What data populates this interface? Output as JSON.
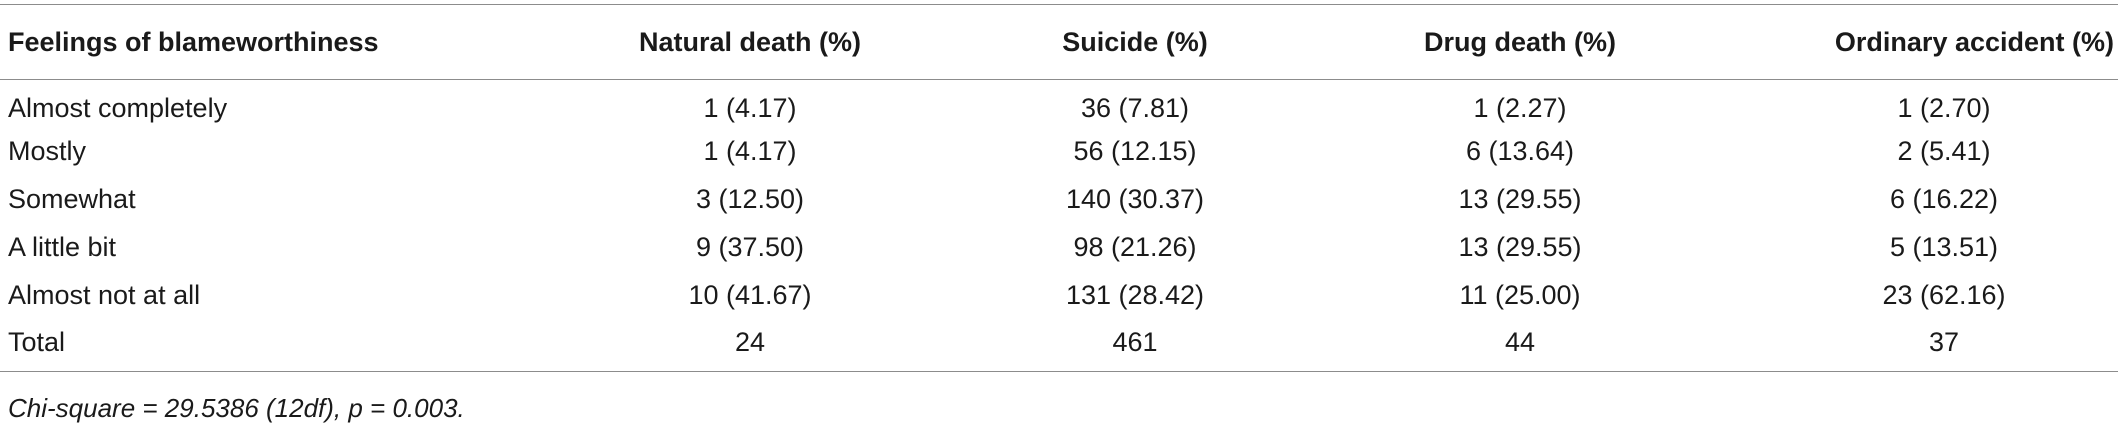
{
  "table": {
    "headers": [
      "Feelings of blameworthiness",
      "Natural death (%)",
      "Suicide (%)",
      "Drug death (%)",
      "Ordinary accident (%)"
    ],
    "rows": [
      [
        "Almost completely",
        "1 (4.17)",
        "36 (7.81)",
        "1 (2.27)",
        "1 (2.70)"
      ],
      [
        "Mostly",
        "1 (4.17)",
        "56 (12.15)",
        "6 (13.64)",
        "2 (5.41)"
      ],
      [
        "Somewhat",
        "3 (12.50)",
        "140 (30.37)",
        "13 (29.55)",
        "6 (16.22)"
      ],
      [
        "A little bit",
        "9 (37.50)",
        "98 (21.26)",
        "13 (29.55)",
        "5 (13.51)"
      ],
      [
        "Almost not at all",
        "10 (41.67)",
        "131 (28.42)",
        "11 (25.00)",
        "23 (62.16)"
      ],
      [
        "Total",
        "24",
        "461",
        "44",
        "37"
      ]
    ]
  },
  "footnote": "Chi-square = 29.5386 (12df), p = 0.003."
}
